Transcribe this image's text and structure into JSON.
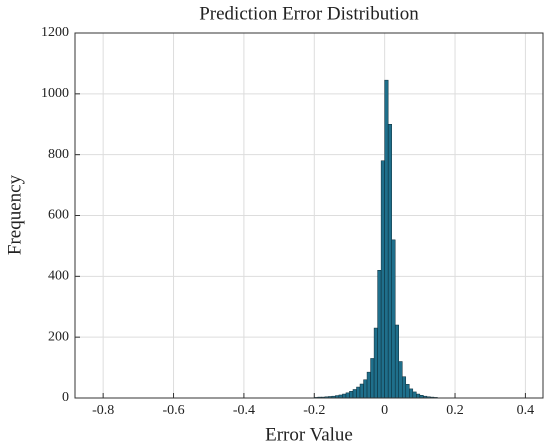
{
  "chart_data": {
    "type": "histogram",
    "title": "Prediction Error Distribution",
    "xlabel": "Error Value",
    "ylabel": "Frequency",
    "bins": [
      -0.2,
      -0.19,
      -0.18,
      -0.17,
      -0.16,
      -0.15,
      -0.14,
      -0.13,
      -0.12,
      -0.11,
      -0.1,
      -0.09,
      -0.08,
      -0.07,
      -0.06,
      -0.05,
      -0.04,
      -0.03,
      -0.02,
      -0.01,
      0,
      0.01,
      0.02,
      0.03,
      0.04,
      0.05,
      0.06,
      0.07,
      0.08,
      0.09,
      0.1,
      0.11,
      0.12,
      0.13,
      0.14,
      0.15
    ],
    "values": [
      2,
      3,
      3,
      4,
      5,
      6,
      8,
      10,
      13,
      17,
      22,
      28,
      36,
      46,
      60,
      85,
      130,
      230,
      420,
      780,
      1045,
      900,
      520,
      240,
      120,
      70,
      45,
      30,
      20,
      13,
      9,
      6,
      4,
      3,
      2
    ],
    "color": "#1f6f8b",
    "xlim": [
      -0.88,
      0.45
    ],
    "xticks": [
      -0.8,
      -0.6,
      -0.4,
      -0.2,
      0,
      0.2,
      0.4
    ],
    "ylim": [
      0,
      1200
    ],
    "yticks": [
      0,
      200,
      400,
      600,
      800,
      1000,
      1200
    ],
    "grid": true
  }
}
